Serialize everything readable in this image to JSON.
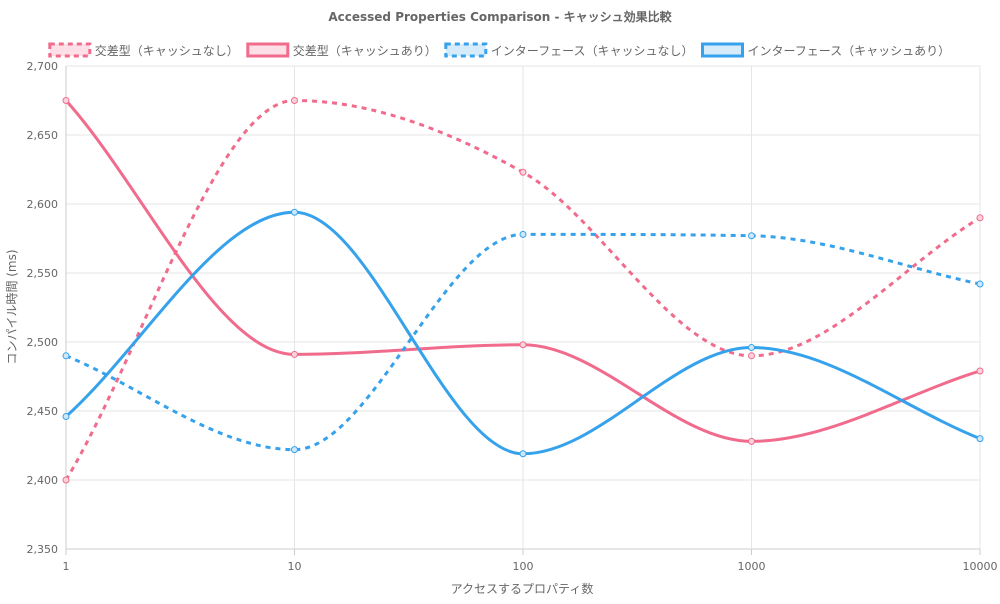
{
  "chart_data": {
    "type": "line",
    "title": "Accessed Properties Comparison - キャッシュ効果比較",
    "xlabel": "アクセスするプロパティ数",
    "ylabel": "コンパイル時間 (ms)",
    "x_scale": "log",
    "categories": [
      "1",
      "10",
      "100",
      "1000",
      "10000"
    ],
    "x": [
      1,
      10,
      100,
      1000,
      10000
    ],
    "ylim": [
      2350,
      2700
    ],
    "y_ticks": [
      2350,
      2400,
      2450,
      2500,
      2550,
      2600,
      2650,
      2700
    ],
    "y_tick_labels": [
      "2,350",
      "2,400",
      "2,450",
      "2,500",
      "2,550",
      "2,600",
      "2,650",
      "2,700"
    ],
    "grid": true,
    "legend_position": "top",
    "series": [
      {
        "name": "交差型（キャッシュなし）",
        "values": [
          2400,
          2675,
          2623,
          2490,
          2590
        ],
        "color": "#f06b8c",
        "dashed": true
      },
      {
        "name": "交差型（キャッシュあり）",
        "values": [
          2675,
          2491,
          2498,
          2428,
          2479
        ],
        "color": "#f06b8c",
        "dashed": false
      },
      {
        "name": "インターフェース（キャッシュなし）",
        "values": [
          2490,
          2422,
          2578,
          2577,
          2542
        ],
        "color": "#36a2eb",
        "dashed": true
      },
      {
        "name": "インターフェース（キャッシュあり）",
        "values": [
          2446,
          2594,
          2419,
          2496,
          2430
        ],
        "color": "#36a2eb",
        "dashed": false
      }
    ]
  }
}
